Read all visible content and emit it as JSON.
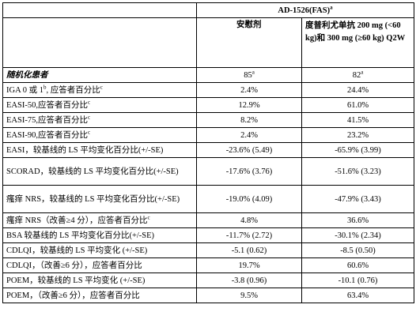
{
  "header": {
    "study": "AD-1526(FAS)",
    "study_sup": "a",
    "arm_placebo": "安慰剂",
    "arm_dupilumab": "度普利尤单抗 200 mg (<60 kg)和 300 mg (≥60 kg) Q2W"
  },
  "randomized": {
    "label": "随机化患者",
    "placebo": "85",
    "placebo_sup": "a",
    "dupilumab": "82",
    "dupilumab_sup": "a"
  },
  "rows": [
    {
      "label": "IGA 0 或 1",
      "label_sup": "b",
      "label_suffix": ", 应答者百分比",
      "label_sup2": "c",
      "placebo": "2.4%",
      "dupilumab": "24.4%"
    },
    {
      "label": "EASI-50,应答者百分比",
      "label_sup": "c",
      "placebo": "12.9%",
      "dupilumab": "61.0%"
    },
    {
      "label": "EASI-75,应答者百分比",
      "label_sup": "c",
      "placebo": "8.2%",
      "dupilumab": "41.5%"
    },
    {
      "label": "EASI-90,应答者百分比",
      "label_sup": "c",
      "placebo": "2.4%",
      "dupilumab": "23.2%"
    },
    {
      "label": "EASI，较基线的 LS 平均变化百分比(+/-SE)",
      "placebo": "-23.6% (5.49)",
      "dupilumab": "-65.9% (3.99)"
    },
    {
      "label": "SCORAD，较基线的 LS 平均变化百分比(+/-SE)",
      "placebo": "-17.6% (3.76)",
      "dupilumab": "-51.6% (3.23)"
    },
    {
      "label": "瘙痒 NRS，较基线的 LS 平均变化百分比(+/-SE)",
      "placebo": "-19.0% (4.09)",
      "dupilumab": "-47.9% (3.43)"
    },
    {
      "label": "瘙痒 NRS（改善≥4 分），应答者百分比",
      "label_sup": "c",
      "placebo": "4.8%",
      "dupilumab": "36.6%"
    },
    {
      "label": "BSA 较基线的 LS 平均变化百分比(+/-SE)",
      "placebo": "-11.7% (2.72)",
      "dupilumab": "-30.1% (2.34)"
    },
    {
      "label": "CDLQI，较基线的 LS 平均变化 (+/-SE)",
      "placebo": "-5.1 (0.62)",
      "dupilumab": "-8.5 (0.50)"
    },
    {
      "label": "CDLQI，（改善≥6 分），应答者百分比",
      "placebo": "19.7%",
      "dupilumab": "60.6%"
    },
    {
      "label": "POEM，较基线的 LS 平均变化 (+/-SE)",
      "placebo": "-3.8 (0.96)",
      "dupilumab": "-10.1 (0.76)"
    },
    {
      "label": "POEM，（改善≥6 分），应答者百分比",
      "placebo": "9.5%",
      "dupilumab": "63.4%"
    }
  ]
}
